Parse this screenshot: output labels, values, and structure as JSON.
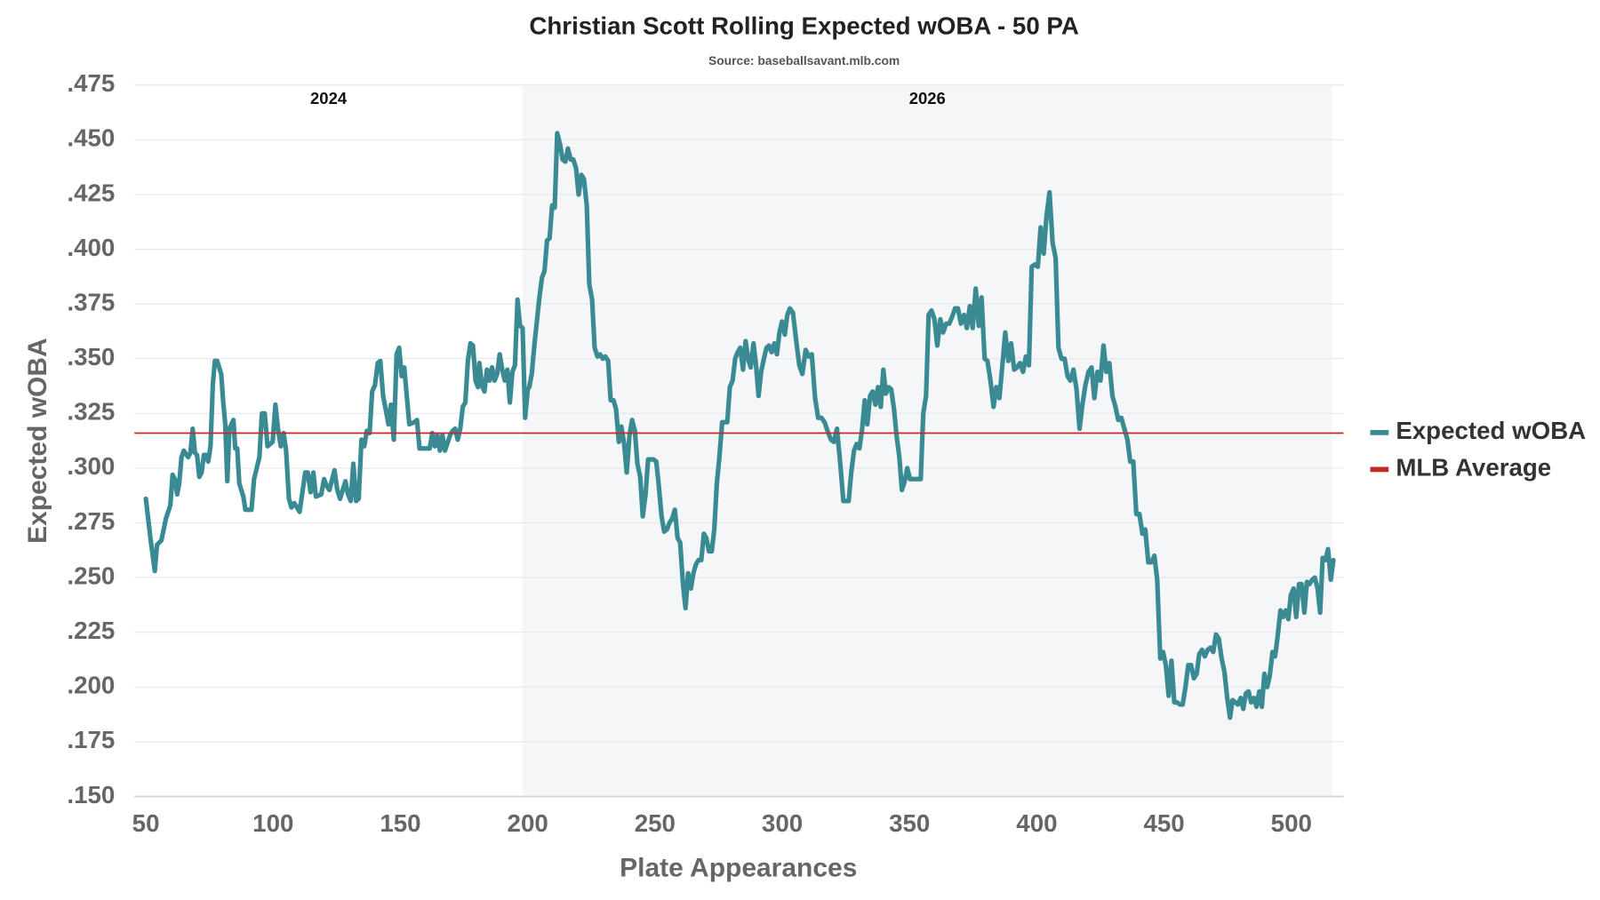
{
  "chart_data": {
    "type": "line",
    "title": "Christian Scott Rolling Expected wOBA - 50 PA",
    "subtitle": "Source: baseballsavant.mlb.com",
    "x_label": "Plate Appearances",
    "y_label": "Expected wOBA",
    "xlim": [
      45.5,
      520.5
    ],
    "xticks": [
      50,
      100,
      150,
      200,
      250,
      300,
      350,
      400,
      450,
      500
    ],
    "ylim": [
      0.15,
      0.475
    ],
    "yticks": [
      {
        "value": 0.15,
        "label": ".150"
      },
      {
        "value": 0.175,
        "label": ".175"
      },
      {
        "value": 0.2,
        "label": ".200"
      },
      {
        "value": 0.225,
        "label": ".225"
      },
      {
        "value": 0.25,
        "label": ".250"
      },
      {
        "value": 0.275,
        "label": ".275"
      },
      {
        "value": 0.3,
        "label": ".300"
      },
      {
        "value": 0.325,
        "label": ".325"
      },
      {
        "value": 0.35,
        "label": ".350"
      },
      {
        "value": 0.375,
        "label": ".375"
      },
      {
        "value": 0.4,
        "label": ".400"
      },
      {
        "value": 0.425,
        "label": ".425"
      },
      {
        "value": 0.45,
        "label": ".450"
      },
      {
        "value": 0.475,
        "label": ".475"
      }
    ],
    "grid": true,
    "legend": "right",
    "seasons": [
      {
        "label": "2024",
        "start": 45.5,
        "end": 198,
        "color": "#ffffff"
      },
      {
        "label": "2026",
        "start": 198,
        "end": 516,
        "color": "#f5f6f7"
      }
    ],
    "reference_lines": [
      {
        "name": "MLB Average",
        "value": 0.316,
        "color": "#c62828"
      }
    ],
    "x": [
      50,
      51.8,
      53.5,
      54.4,
      56.1,
      57.9,
      59.6,
      60.5,
      61.4,
      62.3,
      63.1,
      64,
      64.9,
      66.6,
      67.5,
      68.4,
      69.3,
      70.1,
      71,
      71.9,
      72.8,
      73.6,
      74.5,
      75.4,
      76.3,
      77.1,
      78,
      79.6,
      80.4,
      81.2,
      82,
      82.8,
      84.4,
      85.1,
      85.9,
      86.7,
      88.3,
      89.1,
      91.5,
      92.5,
      94.6,
      95.6,
      96.7,
      97.8,
      99.8,
      100.9,
      101.9,
      103,
      104.1,
      105.1,
      106.2,
      107.2,
      108.3,
      110.4,
      112.6,
      113.6,
      114.7,
      115.8,
      116.8,
      118.9,
      120,
      121,
      122.1,
      124.1,
      125.2,
      126.3,
      128.4,
      129.4,
      130.5,
      131.5,
      132.6,
      133.6,
      134.7,
      135.8,
      136.8,
      137.9,
      138.9,
      140,
      141.1,
      142.1,
      143.2,
      144.2,
      145.3,
      146.3,
      147.4,
      148.5,
      149.5,
      150.5,
      151.5,
      153.5,
      155.5,
      156.5,
      157.5,
      159.5,
      161.5,
      162.5,
      163.5,
      164.5,
      165.5,
      166.5,
      167.5,
      169.5,
      170.5,
      171.5,
      172.5,
      173.5,
      174.5,
      175.5,
      176.5,
      177.5,
      178.5,
      179.5,
      180.5,
      181,
      182,
      183,
      184,
      185,
      186,
      187,
      188,
      189,
      190,
      191,
      192,
      193,
      194,
      195,
      196,
      197,
      198,
      199,
      200,
      200.6,
      201.6,
      202.6,
      203.6,
      204.6,
      205.6,
      206.6,
      207.6,
      208.6,
      209.6,
      210.6,
      211.6,
      212.7,
      213.7,
      214.8,
      215.8,
      216.9,
      217.9,
      219,
      220,
      221.1,
      222.1,
      223.2,
      224.2,
      225.3,
      226.3,
      227.4,
      228.4,
      229.5,
      230.5,
      231.6,
      232.6,
      233.7,
      234.7,
      235.8,
      236.8,
      237.9,
      238.9,
      240,
      241,
      242.1,
      243.1,
      244.2,
      245.2,
      246.3,
      247.3,
      248.4,
      249.4,
      250.5,
      251.5,
      252.6,
      253.6,
      254.7,
      255.7,
      256.8,
      257.8,
      258.9,
      259.9,
      261,
      262,
      263,
      264.1,
      265.1,
      266.1,
      267.1,
      268.2,
      269.2,
      270.2,
      271.2,
      272.3,
      273.3,
      274.3,
      275.3,
      276.4,
      277.4,
      278.4,
      279.4,
      280.5,
      281.5,
      282.5,
      283.5,
      284.6,
      285.6,
      286.6,
      287.6,
      288.7,
      289.7,
      290.7,
      291.7,
      292.8,
      293.8,
      294.8,
      295.8,
      296.9,
      297.9,
      298.9,
      299.9,
      301,
      302,
      303,
      304.2,
      305.5,
      306.7,
      307.9,
      309.2,
      310.4,
      311.6,
      312.9,
      314.1,
      315.4,
      316.6,
      317.8,
      319.1,
      320.3,
      321.5,
      322.8,
      324,
      326.1,
      327.1,
      328.2,
      329.2,
      330.3,
      331.3,
      332.4,
      333.4,
      334.5,
      335.5,
      336.6,
      337.6,
      338.7,
      339.7,
      340.7,
      341.8,
      342.8,
      343.9,
      344.9,
      346,
      347,
      348.1,
      349.1,
      350.2,
      351.2,
      353.3,
      354.4,
      355.4,
      356.5,
      357.5,
      358.6,
      359.8,
      360.9,
      362.1,
      363.2,
      364.4,
      365.6,
      366.7,
      367.9,
      369,
      370.2,
      371.4,
      372.5,
      373.7,
      374.8,
      376,
      377.2,
      378.3,
      379.5,
      380.6,
      381.8,
      383,
      384.1,
      385.3,
      386.4,
      387.6,
      388.8,
      389.9,
      391.1,
      392.2,
      393.4,
      394.6,
      395.7,
      396.9,
      398,
      399.2,
      400.4,
      401.5,
      402.7,
      403.8,
      405,
      406.2,
      407.4,
      408.5,
      409.7,
      410.9,
      412.1,
      413.2,
      414.4,
      415.6,
      416.8,
      417.9,
      419.1,
      420.3,
      421.5,
      422.6,
      423.8,
      425,
      426.2,
      427.3,
      428.5,
      429.7,
      430.9,
      432,
      433.2,
      434.4,
      435.6,
      436.7,
      437.9,
      439.1,
      440.3,
      441.5,
      442.6,
      443.8,
      445,
      446.2,
      447.3,
      448.5,
      449.6,
      450.7,
      451.8,
      452.9,
      454,
      455.1,
      456.2,
      457.3,
      458.4,
      459.5,
      460.6,
      461.7,
      462.8,
      463.8,
      464.9,
      466,
      467.1,
      468.2,
      469.3,
      470.4,
      471.5,
      472.6,
      473.7,
      474.8,
      475.9,
      476.9,
      478,
      479,
      480.1,
      481.1,
      482.1,
      483.2,
      484.2,
      485.3,
      486.3,
      487.4,
      488.4,
      489.4,
      490.5,
      491.5,
      492.6,
      493.6,
      494.6,
      495.7,
      496.7,
      497.8,
      498.8,
      499.8,
      500.9,
      501.9,
      503,
      504,
      505.1,
      506.1,
      507.1,
      508.2,
      509.2,
      510.3,
      511.3,
      512.3,
      513.4,
      514.4,
      515.5,
      516.5
    ],
    "series": [
      {
        "name": "Expected wOBA",
        "color": "#3a8a93",
        "values": [
          0.286,
          0.268,
          0.253,
          0.265,
          0.267,
          0.277,
          0.283,
          0.297,
          0.295,
          0.288,
          0.293,
          0.305,
          0.308,
          0.305,
          0.307,
          0.318,
          0.307,
          0.306,
          0.296,
          0.298,
          0.306,
          0.306,
          0.303,
          0.31,
          0.338,
          0.349,
          0.349,
          0.343,
          0.33,
          0.32,
          0.294,
          0.318,
          0.322,
          0.309,
          0.309,
          0.293,
          0.287,
          0.281,
          0.281,
          0.295,
          0.305,
          0.325,
          0.325,
          0.31,
          0.312,
          0.329,
          0.318,
          0.31,
          0.316,
          0.308,
          0.286,
          0.282,
          0.284,
          0.28,
          0.298,
          0.298,
          0.289,
          0.298,
          0.287,
          0.288,
          0.295,
          0.292,
          0.29,
          0.299,
          0.29,
          0.286,
          0.294,
          0.288,
          0.285,
          0.302,
          0.285,
          0.286,
          0.313,
          0.31,
          0.317,
          0.316,
          0.335,
          0.338,
          0.348,
          0.349,
          0.333,
          0.327,
          0.32,
          0.329,
          0.313,
          0.352,
          0.355,
          0.342,
          0.346,
          0.32,
          0.321,
          0.322,
          0.309,
          0.309,
          0.309,
          0.316,
          0.31,
          0.315,
          0.308,
          0.315,
          0.308,
          0.315,
          0.317,
          0.318,
          0.313,
          0.318,
          0.328,
          0.33,
          0.349,
          0.357,
          0.356,
          0.34,
          0.337,
          0.348,
          0.338,
          0.335,
          0.345,
          0.34,
          0.346,
          0.34,
          0.343,
          0.352,
          0.345,
          0.34,
          0.345,
          0.33,
          0.344,
          0.347,
          0.377,
          0.365,
          0.364,
          0.323,
          0.336,
          0.337,
          0.343,
          0.356,
          0.367,
          0.378,
          0.387,
          0.39,
          0.404,
          0.405,
          0.42,
          0.419,
          0.453,
          0.448,
          0.441,
          0.44,
          0.446,
          0.441,
          0.441,
          0.437,
          0.425,
          0.434,
          0.432,
          0.42,
          0.384,
          0.377,
          0.355,
          0.351,
          0.352,
          0.35,
          0.351,
          0.349,
          0.331,
          0.331,
          0.327,
          0.312,
          0.319,
          0.311,
          0.298,
          0.315,
          0.322,
          0.317,
          0.302,
          0.296,
          0.278,
          0.288,
          0.304,
          0.304,
          0.304,
          0.303,
          0.292,
          0.278,
          0.271,
          0.272,
          0.275,
          0.277,
          0.281,
          0.268,
          0.266,
          0.247,
          0.236,
          0.252,
          0.245,
          0.252,
          0.256,
          0.258,
          0.258,
          0.27,
          0.268,
          0.262,
          0.262,
          0.272,
          0.293,
          0.305,
          0.321,
          0.321,
          0.321,
          0.337,
          0.34,
          0.35,
          0.353,
          0.355,
          0.345,
          0.358,
          0.35,
          0.346,
          0.357,
          0.347,
          0.333,
          0.344,
          0.35,
          0.355,
          0.356,
          0.353,
          0.357,
          0.352,
          0.362,
          0.367,
          0.361,
          0.37,
          0.373,
          0.371,
          0.358,
          0.347,
          0.343,
          0.354,
          0.351,
          0.352,
          0.332,
          0.323,
          0.323,
          0.321,
          0.317,
          0.313,
          0.312,
          0.318,
          0.302,
          0.285,
          0.285,
          0.298,
          0.308,
          0.311,
          0.309,
          0.317,
          0.331,
          0.32,
          0.333,
          0.335,
          0.329,
          0.337,
          0.328,
          0.345,
          0.334,
          0.337,
          0.336,
          0.327,
          0.315,
          0.305,
          0.29,
          0.294,
          0.3,
          0.295,
          0.295,
          0.295,
          0.295,
          0.325,
          0.333,
          0.37,
          0.372,
          0.368,
          0.356,
          0.368,
          0.362,
          0.366,
          0.366,
          0.369,
          0.373,
          0.373,
          0.366,
          0.37,
          0.364,
          0.374,
          0.364,
          0.382,
          0.365,
          0.378,
          0.35,
          0.349,
          0.34,
          0.328,
          0.337,
          0.332,
          0.346,
          0.362,
          0.349,
          0.357,
          0.345,
          0.346,
          0.348,
          0.344,
          0.351,
          0.347,
          0.392,
          0.393,
          0.392,
          0.41,
          0.398,
          0.415,
          0.426,
          0.403,
          0.396,
          0.355,
          0.35,
          0.35,
          0.342,
          0.34,
          0.345,
          0.336,
          0.318,
          0.329,
          0.338,
          0.344,
          0.346,
          0.332,
          0.344,
          0.34,
          0.356,
          0.344,
          0.348,
          0.333,
          0.328,
          0.322,
          0.323,
          0.318,
          0.313,
          0.303,
          0.303,
          0.279,
          0.279,
          0.27,
          0.272,
          0.257,
          0.257,
          0.26,
          0.249,
          0.213,
          0.216,
          0.21,
          0.196,
          0.212,
          0.193,
          0.193,
          0.192,
          0.192,
          0.2,
          0.21,
          0.21,
          0.204,
          0.206,
          0.215,
          0.217,
          0.214,
          0.217,
          0.218,
          0.216,
          0.224,
          0.222,
          0.213,
          0.207,
          0.195,
          0.186,
          0.194,
          0.193,
          0.192,
          0.195,
          0.19,
          0.197,
          0.198,
          0.193,
          0.195,
          0.191,
          0.198,
          0.191,
          0.206,
          0.2,
          0.205,
          0.216,
          0.214,
          0.223,
          0.235,
          0.232,
          0.235,
          0.231,
          0.242,
          0.245,
          0.232,
          0.247,
          0.247,
          0.234,
          0.248,
          0.247,
          0.249,
          0.25,
          0.245,
          0.234,
          0.259,
          0.258,
          0.263,
          0.249,
          0.258
        ]
      }
    ]
  }
}
